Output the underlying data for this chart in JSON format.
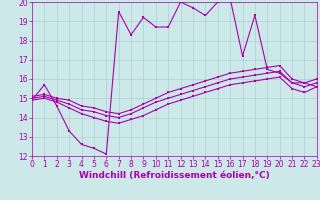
{
  "xlabel": "Windchill (Refroidissement éolien,°C)",
  "background_color": "#cce8e8",
  "grid_color": "#aad0d0",
  "line_color": "#aa00aa",
  "xlim": [
    0,
    23
  ],
  "ylim": [
    12,
    20
  ],
  "xticks": [
    0,
    1,
    2,
    3,
    4,
    5,
    6,
    7,
    8,
    9,
    10,
    11,
    12,
    13,
    14,
    15,
    16,
    17,
    18,
    19,
    20,
    21,
    22,
    23
  ],
  "yticks": [
    12,
    13,
    14,
    15,
    16,
    17,
    18,
    19,
    20
  ],
  "curve1_y": [
    14.9,
    15.7,
    14.6,
    13.3,
    12.6,
    12.4,
    12.1,
    19.5,
    18.3,
    19.2,
    18.7,
    18.7,
    20.0,
    19.7,
    19.3,
    20.0,
    20.2,
    17.2,
    19.3,
    16.5,
    16.3,
    15.8,
    15.8,
    15.6
  ],
  "curve2_y": [
    14.9,
    15.0,
    14.8,
    14.5,
    14.2,
    14.0,
    13.8,
    13.7,
    13.9,
    14.1,
    14.4,
    14.7,
    14.9,
    15.1,
    15.3,
    15.5,
    15.7,
    15.8,
    15.9,
    16.0,
    16.1,
    15.5,
    15.3,
    15.6
  ],
  "curve3_y": [
    15.0,
    15.1,
    14.9,
    14.7,
    14.4,
    14.3,
    14.1,
    14.0,
    14.2,
    14.5,
    14.8,
    15.0,
    15.2,
    15.4,
    15.6,
    15.8,
    16.0,
    16.1,
    16.2,
    16.3,
    16.4,
    15.8,
    15.6,
    15.8
  ],
  "curve4_y": [
    15.1,
    15.2,
    15.0,
    14.9,
    14.6,
    14.5,
    14.3,
    14.2,
    14.4,
    14.7,
    15.0,
    15.3,
    15.5,
    15.7,
    15.9,
    16.1,
    16.3,
    16.4,
    16.5,
    16.6,
    16.7,
    16.0,
    15.8,
    16.0
  ],
  "tick_fontsize": 5.5,
  "label_fontsize": 6.5
}
